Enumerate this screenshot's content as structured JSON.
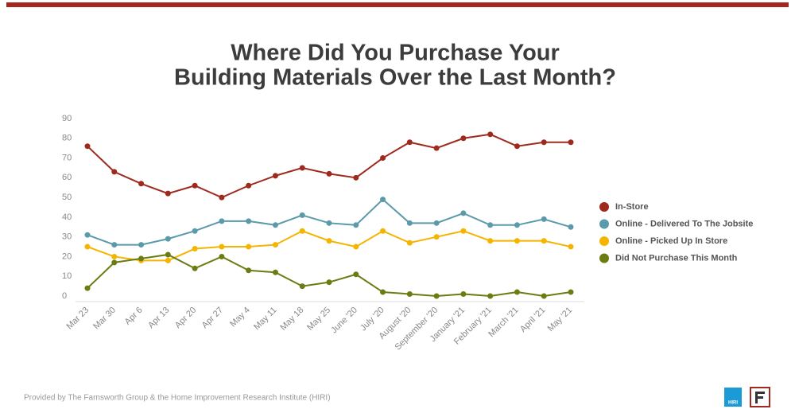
{
  "chart_data": {
    "type": "line",
    "title": "Where Did You Purchase Your",
    "subtitle": "Building Materials Over the Last Month?",
    "categories": [
      "Mar 23",
      "Mar 30",
      "Apr 6",
      "Apr 13",
      "Apr 20",
      "Apr 27",
      "May 4",
      "May 11",
      "May 18",
      "May 25",
      "June '20",
      "July '20",
      "August '20",
      "September '20",
      "January '21",
      "February '21",
      "March '21",
      "April '21",
      "May '21"
    ],
    "series": [
      {
        "name": "In-Store",
        "color": "#9e2a1e",
        "values": [
          76,
          63,
          57,
          52,
          56,
          50,
          56,
          61,
          65,
          62,
          60,
          70,
          78,
          75,
          80,
          82,
          76,
          78,
          78
        ]
      },
      {
        "name": "Online - Delivered To The Jobsite",
        "color": "#5b9aaa",
        "values": [
          31,
          26,
          26,
          29,
          33,
          38,
          38,
          36,
          41,
          37,
          36,
          49,
          37,
          37,
          42,
          36,
          36,
          39,
          35
        ]
      },
      {
        "name": "Online - Picked Up In Store",
        "color": "#f5b400",
        "values": [
          25,
          20,
          18,
          18,
          24,
          25,
          25,
          26,
          33,
          28,
          25,
          33,
          27,
          30,
          33,
          28,
          28,
          28,
          25
        ]
      },
      {
        "name": "Did Not Purchase This Month",
        "color": "#6b7d12",
        "values": [
          4,
          17,
          19,
          21,
          14,
          20,
          13,
          12,
          5,
          7,
          11,
          2,
          1,
          0,
          1,
          0,
          2,
          0,
          2
        ]
      }
    ],
    "ylim": [
      0,
      90
    ],
    "yticks": [
      0,
      10,
      20,
      30,
      40,
      50,
      60,
      70,
      80,
      90
    ],
    "grid": false,
    "legend": "right",
    "footer": "Provided by The Farnsworth Group & the Home Improvement Research Institute (HIRI)",
    "logo_text": "HIRI"
  }
}
